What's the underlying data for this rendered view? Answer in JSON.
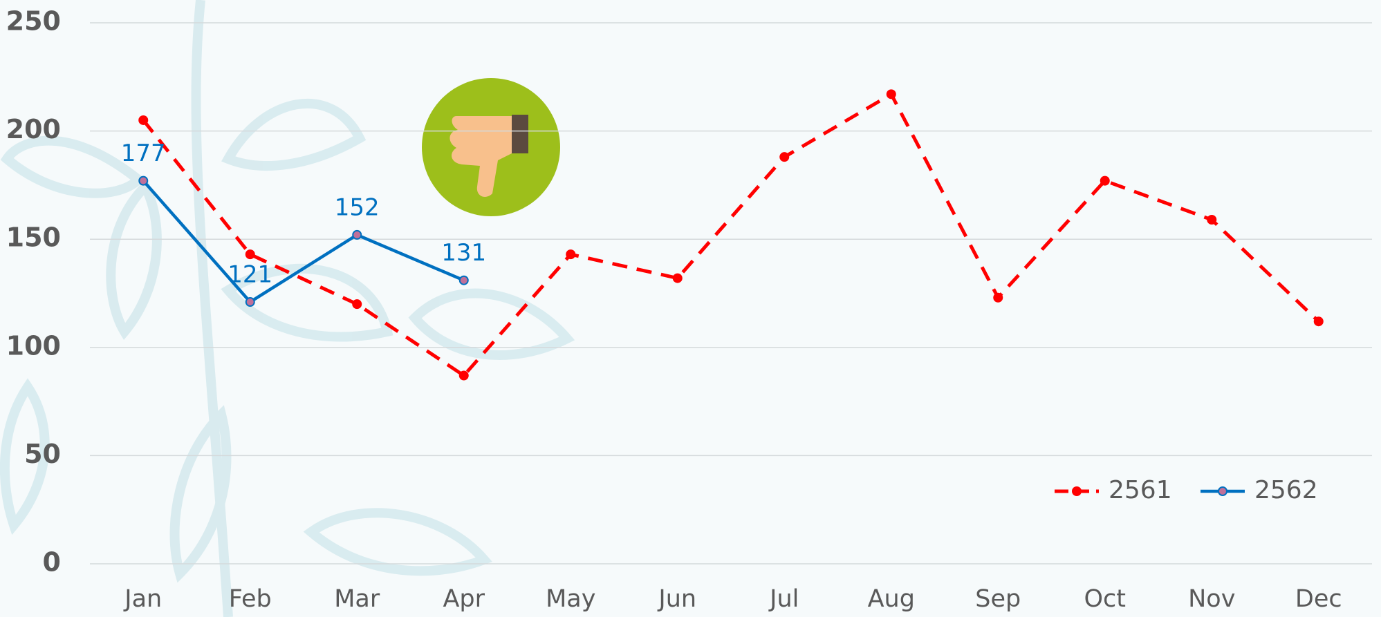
{
  "chart_data": {
    "type": "line",
    "categories": [
      "Jan",
      "Feb",
      "Mar",
      "Apr",
      "May",
      "Jun",
      "Jul",
      "Aug",
      "Sep",
      "Oct",
      "Nov",
      "Dec"
    ],
    "series": [
      {
        "name": "2561",
        "color": "#ff0000",
        "values": [
          205,
          143,
          120,
          87,
          143,
          132,
          188,
          217,
          123,
          177,
          159,
          112
        ]
      },
      {
        "name": "2562",
        "color": "#0070c0",
        "values": [
          177,
          121,
          152,
          131,
          null,
          null,
          null,
          null,
          null,
          null,
          null,
          null
        ]
      }
    ],
    "ylim": [
      0,
      250
    ],
    "yticks": [
      0,
      50,
      100,
      150,
      200,
      250
    ],
    "grid": true,
    "legend": "bottom-right"
  }
}
